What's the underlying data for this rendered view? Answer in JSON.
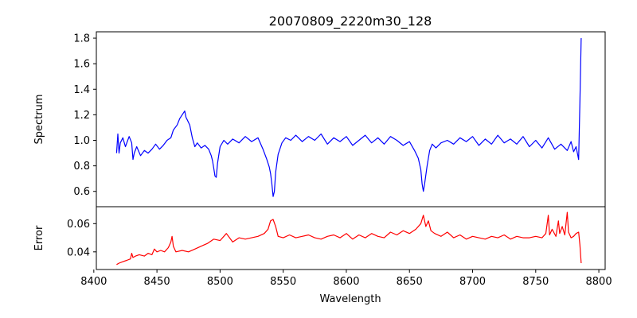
{
  "chart_data": {
    "type": "line",
    "title": "20070809_2220m30_128",
    "xlabel": "Wavelength",
    "xlim": [
      8402,
      8805
    ],
    "xticks": [
      8400,
      8450,
      8500,
      8550,
      8600,
      8650,
      8700,
      8750,
      8800
    ],
    "panels": [
      {
        "ylabel": "Spectrum",
        "ylim": [
          0.48,
          1.85
        ],
        "yticks": [
          0.6,
          0.8,
          1.0,
          1.2,
          1.4,
          1.6,
          1.8
        ],
        "ytick_labels": [
          "0.6",
          "0.8",
          "1.0",
          "1.2",
          "1.4",
          "1.6",
          "1.8"
        ],
        "series": [
          {
            "color": "#0000ff",
            "x": [
              8418,
              8419,
              8420,
              8421,
              8423,
              8425,
              8428,
              8430,
              8431,
              8432,
              8434,
              8437,
              8440,
              8443,
              8446,
              8449,
              8452,
              8455,
              8458,
              8461,
              8463,
              8466,
              8468,
              8470,
              8472,
              8473,
              8474,
              8476,
              8478,
              8480,
              8482,
              8485,
              8488,
              8491,
              8493,
              8494,
              8495,
              8496,
              8497,
              8498,
              8500,
              8503,
              8506,
              8510,
              8515,
              8520,
              8525,
              8530,
              8534,
              8537,
              8539,
              8540,
              8541,
              8542,
              8543,
              8544,
              8546,
              8549,
              8552,
              8556,
              8560,
              8565,
              8570,
              8575,
              8580,
              8585,
              8590,
              8595,
              8600,
              8605,
              8610,
              8615,
              8620,
              8625,
              8630,
              8635,
              8640,
              8645,
              8650,
              8654,
              8657,
              8659,
              8660,
              8661,
              8662,
              8664,
              8666,
              8668,
              8671,
              8675,
              8680,
              8685,
              8690,
              8695,
              8700,
              8705,
              8710,
              8715,
              8720,
              8725,
              8730,
              8735,
              8740,
              8745,
              8750,
              8755,
              8760,
              8765,
              8770,
              8775,
              8778,
              8780,
              8782,
              8784,
              8785,
              8786
            ],
            "y": [
              0.9,
              1.05,
              0.9,
              0.98,
              1.02,
              0.95,
              1.03,
              0.98,
              0.85,
              0.9,
              0.95,
              0.88,
              0.92,
              0.9,
              0.93,
              0.97,
              0.93,
              0.96,
              1.0,
              1.02,
              1.08,
              1.12,
              1.17,
              1.2,
              1.23,
              1.18,
              1.16,
              1.12,
              1.02,
              0.95,
              0.98,
              0.94,
              0.96,
              0.93,
              0.88,
              0.84,
              0.78,
              0.72,
              0.71,
              0.82,
              0.95,
              1.0,
              0.97,
              1.01,
              0.98,
              1.03,
              0.99,
              1.02,
              0.93,
              0.85,
              0.79,
              0.74,
              0.66,
              0.56,
              0.6,
              0.75,
              0.89,
              0.98,
              1.02,
              1.0,
              1.04,
              0.99,
              1.03,
              1.0,
              1.05,
              0.97,
              1.02,
              0.99,
              1.03,
              0.96,
              1.0,
              1.04,
              0.98,
              1.02,
              0.97,
              1.03,
              1.0,
              0.96,
              0.99,
              0.92,
              0.86,
              0.77,
              0.66,
              0.6,
              0.66,
              0.8,
              0.92,
              0.97,
              0.94,
              0.98,
              1.0,
              0.97,
              1.02,
              0.99,
              1.03,
              0.96,
              1.01,
              0.97,
              1.04,
              0.98,
              1.01,
              0.97,
              1.03,
              0.95,
              1.0,
              0.94,
              1.02,
              0.93,
              0.97,
              0.92,
              0.99,
              0.91,
              0.95,
              0.85,
              1.3,
              1.8
            ]
          }
        ]
      },
      {
        "ylabel": "Error",
        "ylim": [
          0.0275,
          0.072
        ],
        "yticks": [
          0.04,
          0.06
        ],
        "ytick_labels": [
          "0.04",
          "0.06"
        ],
        "series": [
          {
            "color": "#ff0000",
            "x": [
              8418,
              8420,
              8423,
              8426,
              8429,
              8430,
              8431,
              8433,
              8436,
              8440,
              8443,
              8446,
              8448,
              8450,
              8453,
              8456,
              8459,
              8461,
              8462,
              8463,
              8465,
              8470,
              8475,
              8480,
              8485,
              8490,
              8495,
              8500,
              8505,
              8510,
              8515,
              8520,
              8525,
              8530,
              8535,
              8538,
              8540,
              8542,
              8544,
              8546,
              8550,
              8555,
              8560,
              8565,
              8570,
              8575,
              8580,
              8585,
              8590,
              8595,
              8600,
              8605,
              8610,
              8615,
              8620,
              8625,
              8630,
              8635,
              8640,
              8645,
              8650,
              8655,
              8659,
              8661,
              8663,
              8665,
              8667,
              8670,
              8675,
              8680,
              8685,
              8690,
              8695,
              8700,
              8705,
              8710,
              8715,
              8720,
              8725,
              8730,
              8735,
              8740,
              8745,
              8750,
              8755,
              8758,
              8760,
              8761,
              8763,
              8766,
              8768,
              8769,
              8771,
              8773,
              8775,
              8776,
              8778,
              8780,
              8782,
              8784,
              8785,
              8786
            ],
            "y": [
              0.031,
              0.032,
              0.033,
              0.034,
              0.035,
              0.039,
              0.036,
              0.037,
              0.038,
              0.037,
              0.039,
              0.038,
              0.042,
              0.04,
              0.041,
              0.04,
              0.043,
              0.047,
              0.051,
              0.044,
              0.04,
              0.041,
              0.04,
              0.042,
              0.044,
              0.046,
              0.049,
              0.048,
              0.053,
              0.047,
              0.05,
              0.049,
              0.05,
              0.051,
              0.053,
              0.056,
              0.062,
              0.063,
              0.058,
              0.051,
              0.05,
              0.052,
              0.05,
              0.051,
              0.052,
              0.05,
              0.049,
              0.051,
              0.052,
              0.05,
              0.053,
              0.049,
              0.052,
              0.05,
              0.053,
              0.051,
              0.05,
              0.054,
              0.052,
              0.055,
              0.053,
              0.056,
              0.06,
              0.066,
              0.058,
              0.062,
              0.055,
              0.053,
              0.051,
              0.054,
              0.05,
              0.052,
              0.049,
              0.051,
              0.05,
              0.049,
              0.051,
              0.05,
              0.052,
              0.049,
              0.051,
              0.05,
              0.05,
              0.051,
              0.05,
              0.053,
              0.066,
              0.052,
              0.056,
              0.051,
              0.062,
              0.053,
              0.058,
              0.052,
              0.068,
              0.054,
              0.05,
              0.051,
              0.053,
              0.054,
              0.045,
              0.032
            ]
          }
        ]
      }
    ]
  }
}
